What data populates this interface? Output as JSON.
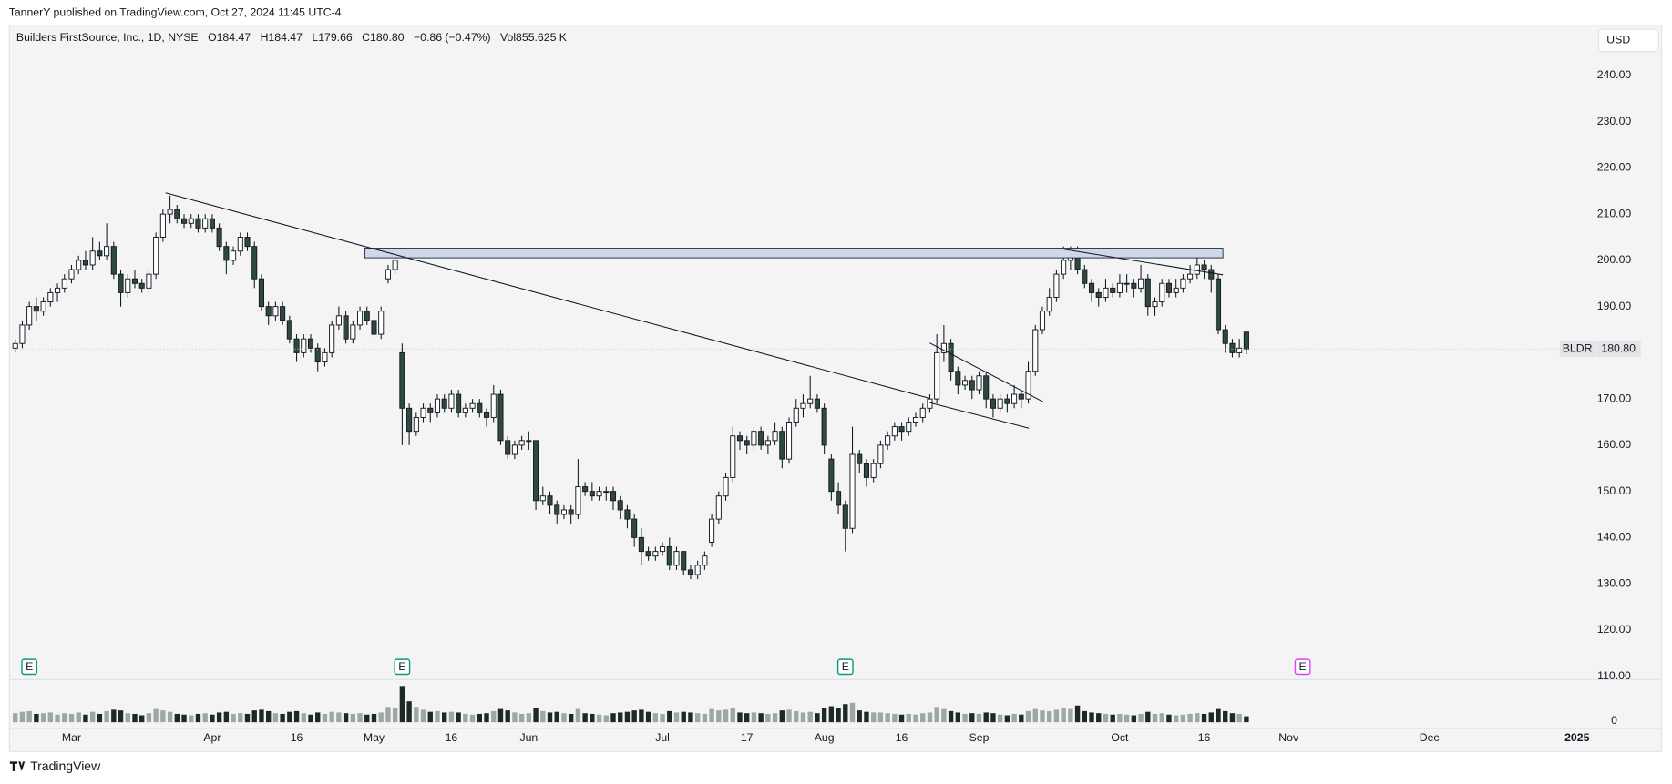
{
  "header": {
    "published": "TannerY published on TradingView.com, Oct 27, 2024 11:45 UTC-4",
    "symbol": "Builders FirstSource, Inc., 1D, NYSE",
    "ohlc": [
      {
        "label": "O",
        "value": "184.47"
      },
      {
        "label": "H",
        "value": "184.47"
      },
      {
        "label": "L",
        "value": "179.66"
      },
      {
        "label": "C",
        "value": "180.80"
      }
    ],
    "change": "−0.86 (−0.47%)",
    "volume_label": "Vol",
    "volume": "855.625 K",
    "currency": "USD"
  },
  "chart_data": {
    "type": "candlestick",
    "ticker": "BLDR",
    "last_price_label": "180.80",
    "ylim": [
      109.5,
      250.8
    ],
    "yticks": [
      {
        "value": 110,
        "label": "110.00"
      },
      {
        "value": 120,
        "label": "120.00"
      },
      {
        "value": 130,
        "label": "130.00"
      },
      {
        "value": 140,
        "label": "140.00"
      },
      {
        "value": 150,
        "label": "150.00"
      },
      {
        "value": 160,
        "label": "160.00"
      },
      {
        "value": 170,
        "label": "170.00"
      },
      {
        "value": 180,
        "label": "180.00"
      },
      {
        "value": 190,
        "label": "190.00"
      },
      {
        "value": 200,
        "label": "200.00"
      },
      {
        "value": 210,
        "label": "210.00"
      },
      {
        "value": 220,
        "label": "220.00"
      },
      {
        "value": 230,
        "label": "230.00"
      },
      {
        "value": 240,
        "label": "240.00"
      }
    ],
    "volume_ylim": [
      0,
      5500
    ],
    "volume_yticks": [
      0
    ],
    "xticks": [
      {
        "value": 8,
        "label": "Mar"
      },
      {
        "value": 28,
        "label": "Apr"
      },
      {
        "value": 40,
        "label": "16"
      },
      {
        "value": 51,
        "label": "May"
      },
      {
        "value": 62,
        "label": "16"
      },
      {
        "value": 73,
        "label": "Jun"
      },
      {
        "value": 92,
        "label": "Jul"
      },
      {
        "value": 104,
        "label": "17"
      },
      {
        "value": 115,
        "label": "Aug"
      },
      {
        "value": 126,
        "label": "16"
      },
      {
        "value": 137,
        "label": "Sep"
      },
      {
        "value": 157,
        "label": "Oct"
      },
      {
        "value": 169,
        "label": "16"
      },
      {
        "value": 181,
        "label": "Nov"
      },
      {
        "value": 201,
        "label": "Dec"
      },
      {
        "value": 222,
        "label": "2025"
      }
    ],
    "up_color": "#ffffff",
    "down_color": "#2f4a3c",
    "up_volume_color": "#9ea8a3",
    "down_volume_color": "#1d2a23",
    "earnings": [
      {
        "value": 2,
        "label": "E"
      },
      {
        "value": 55,
        "label": "E"
      },
      {
        "value": 118,
        "label": "E"
      },
      {
        "value": 183,
        "label": "E"
      }
    ],
    "candles": [
      [
        181,
        183,
        180,
        182,
        1300
      ],
      [
        182,
        187,
        181,
        186,
        1500
      ],
      [
        186,
        191,
        185,
        190,
        1600
      ],
      [
        190,
        192,
        187,
        189,
        1200
      ],
      [
        189,
        192,
        188,
        191,
        1300
      ],
      [
        191,
        194,
        190,
        193,
        1400
      ],
      [
        193,
        195,
        191,
        194,
        1100
      ],
      [
        194,
        197,
        193,
        196,
        1300
      ],
      [
        196,
        199,
        195,
        198,
        1200
      ],
      [
        198,
        201,
        197,
        200,
        1400
      ],
      [
        200,
        202,
        198,
        199,
        1100
      ],
      [
        199,
        205,
        198,
        202,
        1500
      ],
      [
        202,
        204,
        200,
        201,
        1200
      ],
      [
        201,
        208,
        200,
        203,
        1600
      ],
      [
        203,
        204,
        196,
        197,
        1800
      ],
      [
        197,
        198,
        190,
        193,
        1700
      ],
      [
        193,
        197,
        192,
        196,
        1300
      ],
      [
        196,
        198,
        194,
        195,
        1200
      ],
      [
        195,
        196,
        193,
        194,
        1000
      ],
      [
        194,
        198,
        193,
        197,
        1300
      ],
      [
        197,
        206,
        196,
        205,
        1900
      ],
      [
        205,
        211,
        204,
        210,
        1700
      ],
      [
        210,
        214,
        208,
        211,
        1500
      ],
      [
        211,
        212,
        208,
        209,
        1200
      ],
      [
        209,
        210,
        207,
        208,
        1100
      ],
      [
        208,
        210,
        207,
        209,
        1000
      ],
      [
        209,
        210,
        206,
        207,
        1200
      ],
      [
        207,
        210,
        206,
        209,
        1300
      ],
      [
        209,
        210,
        206,
        207,
        1100
      ],
      [
        207,
        208,
        202,
        203,
        1400
      ],
      [
        203,
        204,
        197,
        200,
        1500
      ],
      [
        200,
        203,
        199,
        202,
        1200
      ],
      [
        202,
        206,
        201,
        205,
        1300
      ],
      [
        205,
        206,
        202,
        203,
        1200
      ],
      [
        203,
        204,
        194,
        196,
        1700
      ],
      [
        196,
        197,
        189,
        190,
        1800
      ],
      [
        190,
        191,
        186,
        188,
        1600
      ],
      [
        188,
        191,
        187,
        190,
        1300
      ],
      [
        190,
        191,
        186,
        187,
        1200
      ],
      [
        187,
        188,
        182,
        183,
        1500
      ],
      [
        183,
        184,
        178,
        180,
        1600
      ],
      [
        180,
        184,
        179,
        183,
        1300
      ],
      [
        183,
        184,
        180,
        181,
        1100
      ],
      [
        181,
        182,
        176,
        178,
        1400
      ],
      [
        178,
        181,
        177,
        180,
        1200
      ],
      [
        180,
        187,
        179,
        186,
        1500
      ],
      [
        186,
        190,
        185,
        188,
        1400
      ],
      [
        188,
        189,
        182,
        183,
        1300
      ],
      [
        183,
        187,
        182,
        186,
        1200
      ],
      [
        186,
        190,
        185,
        189,
        1300
      ],
      [
        189,
        190,
        186,
        187,
        1100
      ],
      [
        187,
        188,
        183,
        184,
        1200
      ],
      [
        184,
        190,
        183,
        189,
        1400
      ],
      [
        196,
        199,
        195,
        198,
        2200
      ],
      [
        198,
        201,
        197,
        200,
        2000
      ],
      [
        180,
        182,
        160,
        168,
        5200
      ],
      [
        168,
        169,
        160,
        163,
        3000
      ],
      [
        163,
        167,
        162,
        166,
        2200
      ],
      [
        166,
        169,
        165,
        168,
        1800
      ],
      [
        168,
        169,
        165,
        167,
        1500
      ],
      [
        167,
        171,
        166,
        170,
        1600
      ],
      [
        170,
        171,
        167,
        168,
        1400
      ],
      [
        168,
        172,
        167,
        171,
        1500
      ],
      [
        171,
        172,
        166,
        167,
        1400
      ],
      [
        167,
        169,
        166,
        168,
        1200
      ],
      [
        168,
        170,
        167,
        169,
        1100
      ],
      [
        169,
        170,
        166,
        167,
        1200
      ],
      [
        167,
        168,
        164,
        166,
        1300
      ],
      [
        166,
        173,
        165,
        171,
        1600
      ],
      [
        171,
        172,
        160,
        161,
        1900
      ],
      [
        161,
        162,
        157,
        158,
        1700
      ],
      [
        158,
        161,
        157,
        160,
        1400
      ],
      [
        160,
        162,
        159,
        161,
        1200
      ],
      [
        161,
        163,
        159,
        161,
        1300
      ],
      [
        161,
        161,
        146,
        148,
        2100
      ],
      [
        148,
        151,
        147,
        149,
        1600
      ],
      [
        149,
        150,
        145,
        147,
        1400
      ],
      [
        147,
        148,
        143,
        145,
        1500
      ],
      [
        145,
        147,
        144,
        146,
        1300
      ],
      [
        146,
        147,
        143,
        145,
        1200
      ],
      [
        145,
        157,
        144,
        151,
        1900
      ],
      [
        151,
        152,
        149,
        150,
        1300
      ],
      [
        150,
        152,
        148,
        149,
        1200
      ],
      [
        149,
        151,
        148,
        150,
        1100
      ],
      [
        150,
        151,
        148,
        150,
        1000
      ],
      [
        150,
        151,
        146,
        148,
        1300
      ],
      [
        148,
        149,
        144,
        146,
        1400
      ],
      [
        146,
        147,
        142,
        144,
        1500
      ],
      [
        144,
        145,
        138,
        140,
        1700
      ],
      [
        140,
        142,
        134,
        137,
        1800
      ],
      [
        137,
        138,
        135,
        136,
        1500
      ],
      [
        136,
        138,
        135,
        137,
        1300
      ],
      [
        137,
        139,
        136,
        138,
        1200
      ],
      [
        138,
        140,
        133,
        134,
        1600
      ],
      [
        134,
        138,
        133,
        137,
        1400
      ],
      [
        137,
        137,
        132,
        133,
        1500
      ],
      [
        133,
        134,
        131,
        132,
        1400
      ],
      [
        132,
        135,
        131,
        134,
        1300
      ],
      [
        134,
        137,
        133,
        136,
        1200
      ],
      [
        139,
        145,
        138,
        144,
        1900
      ],
      [
        144,
        150,
        143,
        149,
        1700
      ],
      [
        149,
        154,
        148,
        153,
        1800
      ],
      [
        153,
        164,
        152,
        162,
        2100
      ],
      [
        162,
        163,
        159,
        161,
        1400
      ],
      [
        161,
        162,
        158,
        160,
        1300
      ],
      [
        160,
        164,
        159,
        163,
        1400
      ],
      [
        163,
        164,
        159,
        160,
        1300
      ],
      [
        160,
        162,
        158,
        161,
        1200
      ],
      [
        161,
        165,
        160,
        163,
        1300
      ],
      [
        163,
        164,
        155,
        157,
        1700
      ],
      [
        157,
        166,
        156,
        165,
        1800
      ],
      [
        165,
        170,
        164,
        168,
        1600
      ],
      [
        168,
        171,
        166,
        169,
        1400
      ],
      [
        169,
        175,
        168,
        170,
        1500
      ],
      [
        170,
        171,
        167,
        168,
        1300
      ],
      [
        168,
        169,
        158,
        160,
        2000
      ],
      [
        157,
        158,
        148,
        150,
        2300
      ],
      [
        150,
        152,
        145,
        147,
        2100
      ],
      [
        147,
        148,
        137,
        142,
        2600
      ],
      [
        142,
        164,
        141,
        158,
        2800
      ],
      [
        158,
        159,
        154,
        156,
        1700
      ],
      [
        156,
        157,
        151,
        153,
        1500
      ],
      [
        153,
        157,
        152,
        156,
        1400
      ],
      [
        156,
        161,
        155,
        160,
        1400
      ],
      [
        160,
        163,
        159,
        162,
        1300
      ],
      [
        162,
        165,
        161,
        164,
        1200
      ],
      [
        164,
        165,
        161,
        163,
        1100
      ],
      [
        163,
        166,
        162,
        165,
        1200
      ],
      [
        165,
        167,
        164,
        166,
        1100
      ],
      [
        166,
        169,
        165,
        168,
        1300
      ],
      [
        168,
        171,
        167,
        170,
        1400
      ],
      [
        170,
        184,
        169,
        180,
        2200
      ],
      [
        180,
        186,
        178,
        182,
        1900
      ],
      [
        182,
        183,
        174,
        176,
        1600
      ],
      [
        176,
        177,
        171,
        173,
        1400
      ],
      [
        173,
        175,
        172,
        174,
        1200
      ],
      [
        174,
        175,
        170,
        172,
        1300
      ],
      [
        172,
        176,
        171,
        175,
        1200
      ],
      [
        175,
        176,
        168,
        170,
        1400
      ],
      [
        170,
        171,
        166,
        168,
        1300
      ],
      [
        168,
        171,
        167,
        170,
        1100
      ],
      [
        170,
        171,
        167,
        169,
        1000
      ],
      [
        169,
        173,
        168,
        171,
        1200
      ],
      [
        171,
        172,
        168,
        170,
        1100
      ],
      [
        170,
        178,
        169,
        176,
        1600
      ],
      [
        176,
        186,
        175,
        185,
        1900
      ],
      [
        185,
        190,
        184,
        189,
        1700
      ],
      [
        189,
        194,
        188,
        192,
        1600
      ],
      [
        192,
        198,
        191,
        197,
        1800
      ],
      [
        197,
        203,
        196,
        200,
        2000
      ],
      [
        200,
        203,
        198,
        201,
        1900
      ],
      [
        201,
        203,
        197,
        198,
        2400
      ],
      [
        198,
        199,
        194,
        195,
        1600
      ],
      [
        195,
        196,
        191,
        193,
        1400
      ],
      [
        193,
        194,
        190,
        192,
        1300
      ],
      [
        192,
        196,
        191,
        194,
        1200
      ],
      [
        194,
        195,
        192,
        193,
        1100
      ],
      [
        193,
        197,
        192,
        195,
        1200
      ],
      [
        195,
        197,
        193,
        195,
        1100
      ],
      [
        195,
        196,
        192,
        194,
        1000
      ],
      [
        194,
        199,
        193,
        196,
        1200
      ],
      [
        196,
        197,
        188,
        190,
        1500
      ],
      [
        190,
        192,
        188,
        191,
        1200
      ],
      [
        191,
        196,
        190,
        195,
        1300
      ],
      [
        195,
        196,
        192,
        193,
        1100
      ],
      [
        193,
        196,
        192,
        194,
        1000
      ],
      [
        194,
        197,
        193,
        196,
        1100
      ],
      [
        196,
        199,
        195,
        197,
        1200
      ],
      [
        197,
        202,
        196,
        199,
        1300
      ],
      [
        199,
        200,
        196,
        198,
        1200
      ],
      [
        198,
        199,
        193,
        196,
        1400
      ],
      [
        196,
        197,
        184,
        185,
        1900
      ],
      [
        185,
        186,
        180,
        182,
        1600
      ],
      [
        182,
        183,
        179,
        180,
        1300
      ],
      [
        180,
        183,
        179,
        181,
        1200
      ],
      [
        184.47,
        184.47,
        179.66,
        180.8,
        855.625
      ]
    ]
  },
  "footer": {
    "brand": "TradingView"
  }
}
